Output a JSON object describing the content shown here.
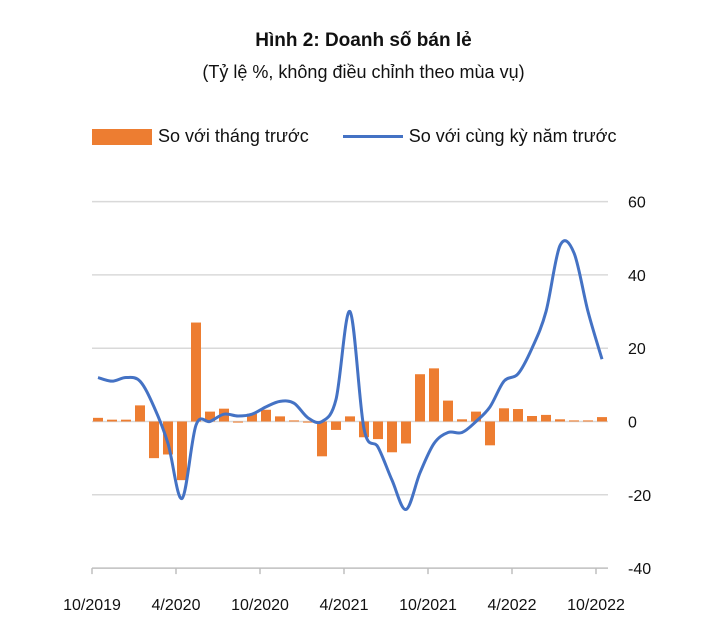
{
  "chart_data": {
    "type": "bar+line",
    "title": "Hình 2: Doanh số bán lẻ",
    "subtitle": "(Tỷ lệ %, không điều chỉnh theo mùa vụ)",
    "ylim": [
      -40,
      60
    ],
    "yticks": [
      60,
      40,
      20,
      0,
      -20,
      -40
    ],
    "xtick_labels": [
      "10/2019",
      "4/2020",
      "10/2020",
      "4/2021",
      "10/2021",
      "4/2022",
      "10/2022"
    ],
    "grid": true,
    "legend_placement": "top",
    "x_start": "10/2019",
    "x_end": "10/2022",
    "colors": {
      "bar": "#ED7D31",
      "line": "#4472C4",
      "grid": "#D9D9D9"
    },
    "series": [
      {
        "name": "So với tháng trước",
        "kind": "bar",
        "values": [
          1,
          0.5,
          0.5,
          4.4,
          -10,
          -9,
          -16,
          27,
          2.7,
          3.5,
          -0.3,
          2.1,
          3.2,
          1.4,
          0.3,
          -0.3,
          -9.5,
          -2.3,
          1.4,
          -4.3,
          -4.8,
          -8.4,
          -6,
          12.9,
          14.5,
          5.7,
          0.6,
          2.7,
          -6.5,
          3.6,
          3.4,
          1.5,
          1.8,
          0.6,
          0.3,
          0.3,
          1.2
        ]
      },
      {
        "name": "So với cùng kỳ năm trước",
        "kind": "line",
        "values": [
          12,
          11,
          12,
          11,
          4,
          -6,
          -21,
          -1,
          0,
          2,
          1.5,
          2,
          4,
          5.5,
          5,
          1,
          0,
          6,
          30,
          -2,
          -7,
          -16,
          -24,
          -14,
          -6,
          -3,
          -3,
          0,
          4,
          11,
          13,
          20,
          30,
          48,
          46,
          30,
          17
        ]
      }
    ]
  }
}
